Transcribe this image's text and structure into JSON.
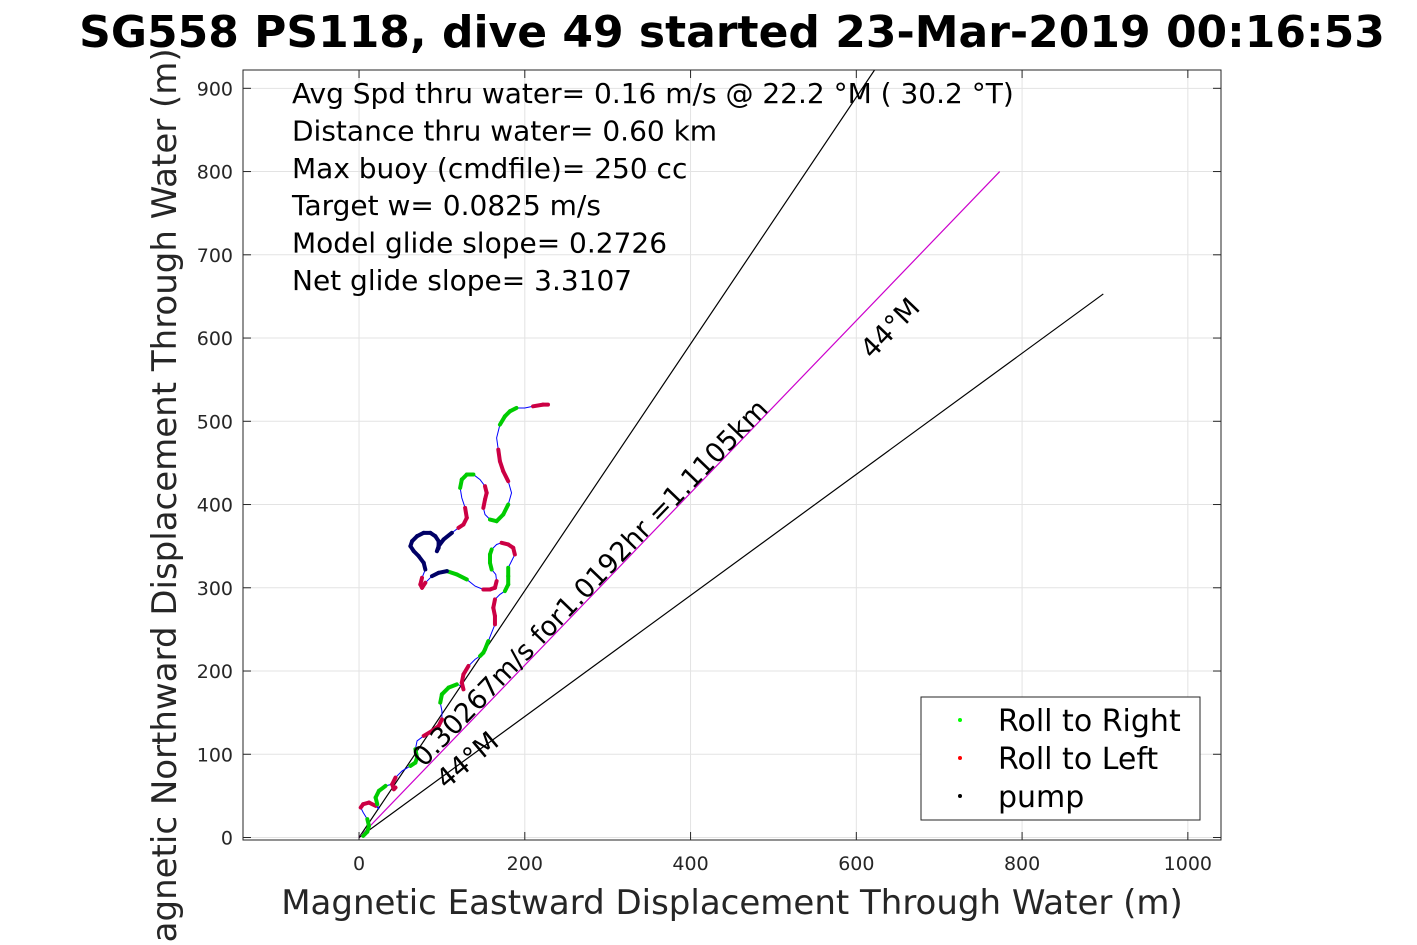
{
  "chart_data": {
    "type": "line",
    "title": "SG558 PS118, dive 49 started 23-Mar-2019 00:16:53",
    "xlabel": "Magnetic Eastward Displacement Through Water (m)",
    "ylabel": "Magnetic Northward Displacement Through Water (m)",
    "xlim": [
      -140,
      1040
    ],
    "ylim": [
      -3,
      922
    ],
    "xticks": [
      0,
      200,
      400,
      600,
      800,
      1000
    ],
    "yticks": [
      0,
      100,
      200,
      300,
      400,
      500,
      600,
      700,
      800,
      900
    ],
    "grid": true,
    "legend_position": "bottom-right",
    "legend": [
      {
        "label": "Roll to Right",
        "color": "#00ff00"
      },
      {
        "label": "Roll to Left",
        "color": "#ff0000"
      },
      {
        "label": "pump",
        "color": "#000000"
      }
    ],
    "annotations": [
      "Avg Spd thru water=  0.16 m/s @  22.2 °M ( 30.2 °T)",
      "Distance thru water=  0.60 km",
      "Max buoy (cmdfile)= 250 cc",
      "Target w= 0.0825 m/s",
      "Model glide slope= 0.2726",
      "Net glide slope= 3.3107"
    ],
    "line_labels": {
      "current": "0.30267m/s for1.0192hr =1.1105km",
      "upper_heading": "44°M",
      "lower_heading": "44°M"
    },
    "reference_lines": [
      {
        "name": "upper",
        "x": [
          0,
          622
        ],
        "y": [
          0,
          922
        ],
        "color": "#000000"
      },
      {
        "name": "current",
        "x": [
          0,
          773
        ],
        "y": [
          0,
          800
        ],
        "color": "#cc00cc"
      },
      {
        "name": "lower",
        "x": [
          0,
          898
        ],
        "y": [
          0,
          653
        ],
        "color": "#000000"
      }
    ],
    "series": [
      {
        "type": "track",
        "color": "#0000ff",
        "x": [
          5,
          10,
          12,
          10,
          5,
          2,
          5,
          12,
          20,
          24,
          22,
          20,
          24,
          32,
          40,
          44,
          42,
          40,
          44,
          52,
          62,
          68,
          70,
          68,
          70,
          78,
          88,
          96,
          100,
          100,
          98,
          100,
          108,
          118,
          124,
          126,
          124,
          126,
          132,
          140,
          146,
          150,
          152,
          156,
          160,
          164,
          164,
          162,
          164,
          170,
          176,
          180,
          180,
          180,
          184,
          188,
          186,
          180,
          172,
          166,
          160,
          158,
          158,
          160,
          165,
          166,
          164,
          158,
          150,
          140,
          130,
          118,
          106,
          96,
          88,
          80,
          76,
          74,
          76,
          80,
          78,
          72,
          66,
          62,
          64,
          70,
          78,
          86,
          92,
          96,
          96,
          94,
          96,
          102,
          112,
          120,
          126,
          130,
          128,
          124,
          122,
          124,
          130,
          138,
          146,
          152,
          154,
          152,
          150,
          152,
          158,
          166,
          174,
          180,
          184,
          180,
          174,
          170,
          168,
          166,
          170,
          176,
          182,
          190,
          200,
          210,
          222,
          228
        ],
        "y": [
          2,
          7,
          14,
          22,
          30,
          36,
          40,
          42,
          38,
          34,
          40,
          48,
          56,
          62,
          64,
          60,
          58,
          64,
          72,
          80,
          86,
          90,
          96,
          106,
          116,
          122,
          128,
          134,
          142,
          152,
          162,
          172,
          180,
          184,
          182,
          178,
          186,
          196,
          206,
          214,
          218,
          222,
          226,
          236,
          246,
          256,
          266,
          276,
          286,
          292,
          296,
          304,
          314,
          324,
          332,
          340,
          348,
          352,
          354,
          352,
          346,
          340,
          330,
          322,
          316,
          308,
          300,
          298,
          298,
          302,
          310,
          316,
          320,
          318,
          314,
          306,
          300,
          304,
          312,
          322,
          330,
          338,
          344,
          350,
          356,
          362,
          366,
          366,
          362,
          356,
          348,
          344,
          350,
          358,
          366,
          372,
          376,
          384,
          396,
          408,
          420,
          430,
          436,
          436,
          430,
          422,
          414,
          406,
          396,
          388,
          382,
          380,
          388,
          400,
          414,
          428,
          440,
          452,
          466,
          480,
          496,
          506,
          512,
          516,
          516,
          518,
          520,
          520
        ]
      }
    ]
  }
}
